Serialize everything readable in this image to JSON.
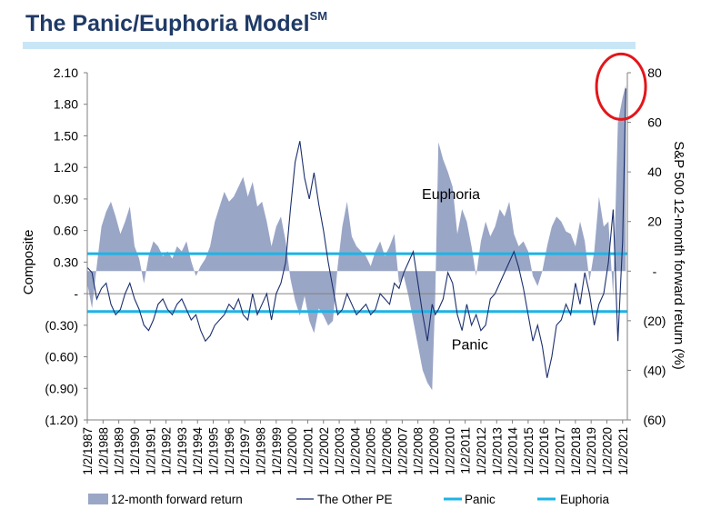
{
  "page": {
    "title": "The Panic/Euphoria Model",
    "title_sup": "SM"
  },
  "chart_data": {
    "type": "line",
    "colors": {
      "forward_return_fill": "#9aa6c6",
      "other_pe_line": "#1b2f6e",
      "panic_line": "#1cb4e6",
      "euphoria_line": "#1cb4e6",
      "highlight_circle": "#e3161b",
      "title": "#1f3a66"
    },
    "left_axis": {
      "label": "Composite",
      "ylim": [
        -1.2,
        2.1
      ],
      "ticks": [
        2.1,
        1.8,
        1.5,
        1.2,
        0.9,
        0.6,
        0.3,
        0,
        -0.3,
        -0.6,
        -0.9,
        -1.2
      ],
      "tick_labels": [
        "2.10",
        "1.80",
        "1.50",
        "1.20",
        "0.90",
        "0.60",
        "0.30",
        "-",
        "(0.30)",
        "(0.60)",
        "(0.90)",
        "(1.20)"
      ]
    },
    "right_axis": {
      "label": "S&P 500 12-month forward return (%)",
      "ylim": [
        -60,
        80
      ],
      "ticks": [
        80,
        60,
        40,
        20,
        0,
        -20,
        -40,
        -60
      ],
      "tick_labels": [
        "80",
        "60",
        "40",
        "20",
        "-",
        "(20)",
        "(40)",
        "(60)"
      ]
    },
    "x_axis": {
      "range": [
        1987,
        2021.3
      ],
      "tick_labels": [
        "1/2/1987",
        "1/2/1988",
        "1/2/1989",
        "1/2/1990",
        "1/2/1991",
        "1/2/1992",
        "1/2/1993",
        "1/2/1994",
        "1/2/1995",
        "1/2/1996",
        "1/2/1997",
        "1/2/1998",
        "1/2/1999",
        "1/2/2000",
        "1/2/2001",
        "1/2/2002",
        "1/2/2003",
        "1/2/2004",
        "1/2/2005",
        "1/2/2006",
        "1/2/2007",
        "1/2/2008",
        "1/2/2009",
        "1/2/2010",
        "1/2/2011",
        "1/2/2012",
        "1/2/2013",
        "1/2/2014",
        "1/2/2015",
        "1/2/2016",
        "1/2/2017",
        "1/2/2018",
        "1/2/2019",
        "1/2/2020",
        "1/2/2021"
      ]
    },
    "panic_level": -0.17,
    "euphoria_level": 0.38,
    "annotations": [
      {
        "text": "Euphoria",
        "x": 2010.1,
        "y": 0.9
      },
      {
        "text": "Panic",
        "x": 2011.3,
        "y": -0.53
      }
    ],
    "highlight": {
      "x": 2020.9,
      "y": 1.95
    },
    "series": [
      {
        "name": "12-month forward return",
        "kind": "area",
        "axis": "right",
        "x": [
          1987.0,
          1987.3,
          1987.6,
          1987.9,
          1988.2,
          1988.5,
          1988.8,
          1989.1,
          1989.4,
          1989.7,
          1990.0,
          1990.3,
          1990.6,
          1990.9,
          1991.2,
          1991.5,
          1991.8,
          1992.1,
          1992.4,
          1992.7,
          1993.0,
          1993.3,
          1993.6,
          1993.9,
          1994.2,
          1994.5,
          1994.8,
          1995.1,
          1995.4,
          1995.7,
          1996.0,
          1996.3,
          1996.6,
          1996.9,
          1997.2,
          1997.5,
          1997.8,
          1998.1,
          1998.4,
          1998.7,
          1999.0,
          1999.3,
          1999.6,
          1999.9,
          2000.2,
          2000.5,
          2000.8,
          2001.1,
          2001.4,
          2001.7,
          2002.0,
          2002.3,
          2002.6,
          2002.9,
          2003.2,
          2003.5,
          2003.8,
          2004.1,
          2004.4,
          2004.7,
          2005.0,
          2005.3,
          2005.6,
          2005.9,
          2006.2,
          2006.5,
          2006.8,
          2007.1,
          2007.4,
          2007.7,
          2008.0,
          2008.3,
          2008.6,
          2008.9,
          2009.1,
          2009.3,
          2009.6,
          2009.9,
          2010.2,
          2010.5,
          2010.8,
          2011.1,
          2011.4,
          2011.7,
          2012.0,
          2012.3,
          2012.6,
          2012.9,
          2013.2,
          2013.5,
          2013.8,
          2014.1,
          2014.4,
          2014.7,
          2015.0,
          2015.3,
          2015.6,
          2015.9,
          2016.2,
          2016.5,
          2016.8,
          2017.1,
          2017.4,
          2017.7,
          2018.0,
          2018.3,
          2018.6,
          2018.9,
          2019.2,
          2019.5,
          2019.8,
          2020.1,
          2020.4,
          2020.7,
          2021.0,
          2021.2
        ],
        "values": [
          -5,
          -15,
          2,
          18,
          24,
          28,
          22,
          15,
          20,
          26,
          10,
          5,
          -5,
          6,
          12,
          10,
          6,
          8,
          5,
          10,
          8,
          12,
          4,
          -2,
          2,
          5,
          10,
          20,
          26,
          32,
          28,
          30,
          34,
          38,
          30,
          36,
          26,
          28,
          20,
          10,
          18,
          22,
          12,
          -3,
          -12,
          -18,
          -10,
          -20,
          -25,
          -15,
          -18,
          -22,
          -20,
          2,
          18,
          28,
          14,
          10,
          8,
          6,
          2,
          8,
          12,
          6,
          10,
          15,
          -5,
          -2,
          -10,
          -20,
          -30,
          -40,
          -45,
          -48,
          -10,
          52,
          45,
          40,
          34,
          15,
          25,
          20,
          10,
          -2,
          12,
          20,
          14,
          18,
          25,
          22,
          28,
          15,
          10,
          12,
          8,
          -2,
          -6,
          0,
          10,
          18,
          22,
          20,
          16,
          15,
          10,
          20,
          12,
          -4,
          8,
          30,
          18,
          20,
          -10,
          60,
          70,
          75
        ]
      },
      {
        "name": "The Other PE",
        "kind": "line",
        "axis": "left",
        "x": [
          1987.0,
          1987.3,
          1987.6,
          1987.9,
          1988.2,
          1988.5,
          1988.8,
          1989.1,
          1989.4,
          1989.7,
          1990.0,
          1990.3,
          1990.6,
          1990.9,
          1991.2,
          1991.5,
          1991.8,
          1992.1,
          1992.4,
          1992.7,
          1993.0,
          1993.3,
          1993.6,
          1993.9,
          1994.2,
          1994.5,
          1994.8,
          1995.1,
          1995.4,
          1995.7,
          1996.0,
          1996.3,
          1996.6,
          1996.9,
          1997.2,
          1997.5,
          1997.8,
          1998.1,
          1998.4,
          1998.7,
          1999.0,
          1999.3,
          1999.6,
          1999.9,
          2000.2,
          2000.5,
          2000.8,
          2001.1,
          2001.4,
          2001.7,
          2002.0,
          2002.3,
          2002.6,
          2002.9,
          2003.2,
          2003.5,
          2003.8,
          2004.1,
          2004.4,
          2004.7,
          2005.0,
          2005.3,
          2005.6,
          2005.9,
          2006.2,
          2006.5,
          2006.8,
          2007.1,
          2007.4,
          2007.7,
          2008.0,
          2008.3,
          2008.6,
          2008.9,
          2009.1,
          2009.3,
          2009.6,
          2009.9,
          2010.2,
          2010.5,
          2010.8,
          2011.1,
          2011.4,
          2011.7,
          2012.0,
          2012.3,
          2012.6,
          2012.9,
          2013.2,
          2013.5,
          2013.8,
          2014.1,
          2014.4,
          2014.7,
          2015.0,
          2015.3,
          2015.6,
          2015.9,
          2016.2,
          2016.5,
          2016.8,
          2017.1,
          2017.4,
          2017.7,
          2018.0,
          2018.3,
          2018.6,
          2018.9,
          2019.2,
          2019.5,
          2019.8,
          2020.1,
          2020.4,
          2020.7,
          2021.0,
          2021.2
        ],
        "values": [
          0.25,
          0.2,
          -0.05,
          0.05,
          0.1,
          -0.1,
          -0.2,
          -0.15,
          0.0,
          0.1,
          -0.05,
          -0.15,
          -0.3,
          -0.35,
          -0.25,
          -0.1,
          -0.05,
          -0.15,
          -0.2,
          -0.1,
          -0.05,
          -0.15,
          -0.25,
          -0.2,
          -0.35,
          -0.45,
          -0.4,
          -0.3,
          -0.25,
          -0.2,
          -0.1,
          -0.15,
          -0.05,
          -0.2,
          -0.25,
          0.0,
          -0.2,
          -0.1,
          0.0,
          -0.25,
          0.0,
          0.1,
          0.3,
          0.8,
          1.25,
          1.45,
          1.1,
          0.9,
          1.15,
          0.85,
          0.6,
          0.3,
          0.05,
          -0.2,
          -0.15,
          0.0,
          -0.1,
          -0.2,
          -0.15,
          -0.1,
          -0.2,
          -0.15,
          0.0,
          -0.05,
          -0.1,
          0.1,
          0.05,
          0.2,
          0.3,
          0.4,
          0.1,
          -0.2,
          -0.45,
          -0.1,
          -0.2,
          -0.15,
          -0.05,
          0.2,
          0.1,
          -0.2,
          -0.35,
          -0.1,
          -0.3,
          -0.2,
          -0.35,
          -0.3,
          -0.05,
          0.0,
          0.1,
          0.2,
          0.3,
          0.4,
          0.25,
          0.05,
          -0.2,
          -0.45,
          -0.3,
          -0.5,
          -0.8,
          -0.6,
          -0.3,
          -0.25,
          -0.1,
          -0.2,
          0.1,
          -0.1,
          0.2,
          0.0,
          -0.3,
          -0.1,
          0.0,
          0.3,
          0.8,
          -0.45,
          0.5,
          1.95
        ]
      },
      {
        "name": "Panic",
        "kind": "hline",
        "axis": "left",
        "value": -0.17
      },
      {
        "name": "Euphoria",
        "kind": "hline",
        "axis": "left",
        "value": 0.38
      }
    ],
    "grid": false,
    "legend": "bottom"
  }
}
